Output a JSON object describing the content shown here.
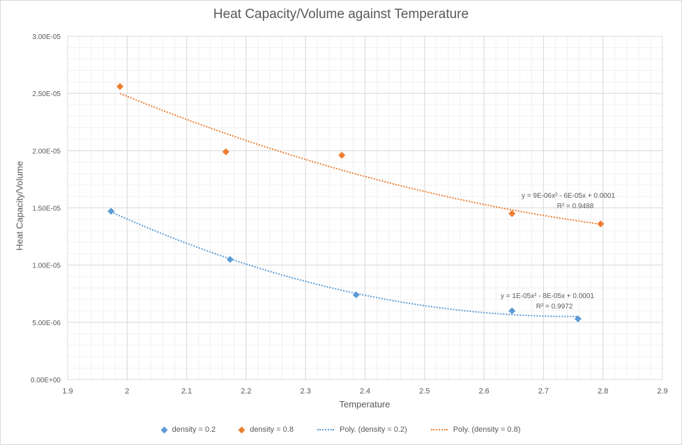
{
  "chart_data": {
    "type": "scatter",
    "title": "Heat Capacity/Volume against Temperature",
    "xlabel": "Temperature",
    "ylabel": "Heat Capacity/Volume",
    "xlim": [
      1.9,
      2.9
    ],
    "ylim": [
      0,
      3e-05
    ],
    "xticks": [
      1.9,
      2.0,
      2.1,
      2.2,
      2.3,
      2.4,
      2.5,
      2.6,
      2.7,
      2.8,
      2.9
    ],
    "xtick_labels": [
      "1.9",
      "2",
      "2.1",
      "2.2",
      "2.3",
      "2.4",
      "2.5",
      "2.6",
      "2.7",
      "2.8",
      "2.9"
    ],
    "yticks": [
      0,
      5e-06,
      1e-05,
      1.5e-05,
      2e-05,
      2.5e-05,
      3e-05
    ],
    "ytick_labels": [
      "0.00E+00",
      "5.00E-06",
      "1.00E-05",
      "1.50E-05",
      "2.00E-05",
      "2.50E-05",
      "3.00E-05"
    ],
    "grid": true,
    "legend_position": "bottom",
    "series": [
      {
        "name": "density = 0.2",
        "color": "#5b9bd5",
        "x": [
          1.973,
          2.173,
          2.385,
          2.647,
          2.758
        ],
        "y": [
          1.47e-05,
          1.05e-05,
          7.4e-06,
          6e-06,
          5.3e-06
        ],
        "trendline": {
          "name": "Poly. (density = 0.2)",
          "equation": "y = 1E-05x² - 8E-05x + 0.0001",
          "r2": "R² = 0.9972"
        }
      },
      {
        "name": "density = 0.8",
        "color": "#ed7d31",
        "x": [
          1.988,
          2.166,
          2.361,
          2.647,
          2.796
        ],
        "y": [
          2.56e-05,
          1.99e-05,
          1.96e-05,
          1.45e-05,
          1.36e-05
        ],
        "trendline": {
          "name": "Poly. (density = 0.8)",
          "equation": "y = 9E-06x² - 6E-05x + 0.0001",
          "r2": "R² = 0.9488"
        }
      }
    ]
  },
  "legend": [
    {
      "label": "density = 0.2",
      "color": "#5b9bd5",
      "kind": "marker"
    },
    {
      "label": "density = 0.8",
      "color": "#ed7d31",
      "kind": "marker"
    },
    {
      "label": "Poly. (density = 0.2)",
      "color": "#5b9bd5",
      "kind": "line"
    },
    {
      "label": "Poly. (density = 0.8)",
      "color": "#ed7d31",
      "kind": "line"
    }
  ]
}
